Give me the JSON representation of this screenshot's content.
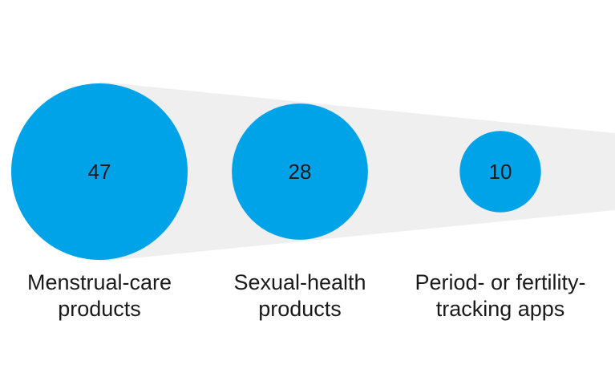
{
  "colors": {
    "bubble": "#00a3e8",
    "funnel": "#efefef",
    "text": "#1a1a1a",
    "background": "#ffffff"
  },
  "chart_data": {
    "type": "bubble",
    "categories": [
      "Menstrual-care products",
      "Sexual-health products",
      "Period- or fertility-tracking apps"
    ],
    "values": [
      47,
      28,
      10
    ],
    "title": "",
    "xlabel": "",
    "ylabel": "",
    "grid": false,
    "legend": "none"
  },
  "labels": [
    {
      "line1": "Menstrual-care",
      "line2": "products"
    },
    {
      "line1": "Sexual-health",
      "line2": "products"
    },
    {
      "line1": "Period- or fertility-",
      "line2": "tracking apps"
    }
  ]
}
